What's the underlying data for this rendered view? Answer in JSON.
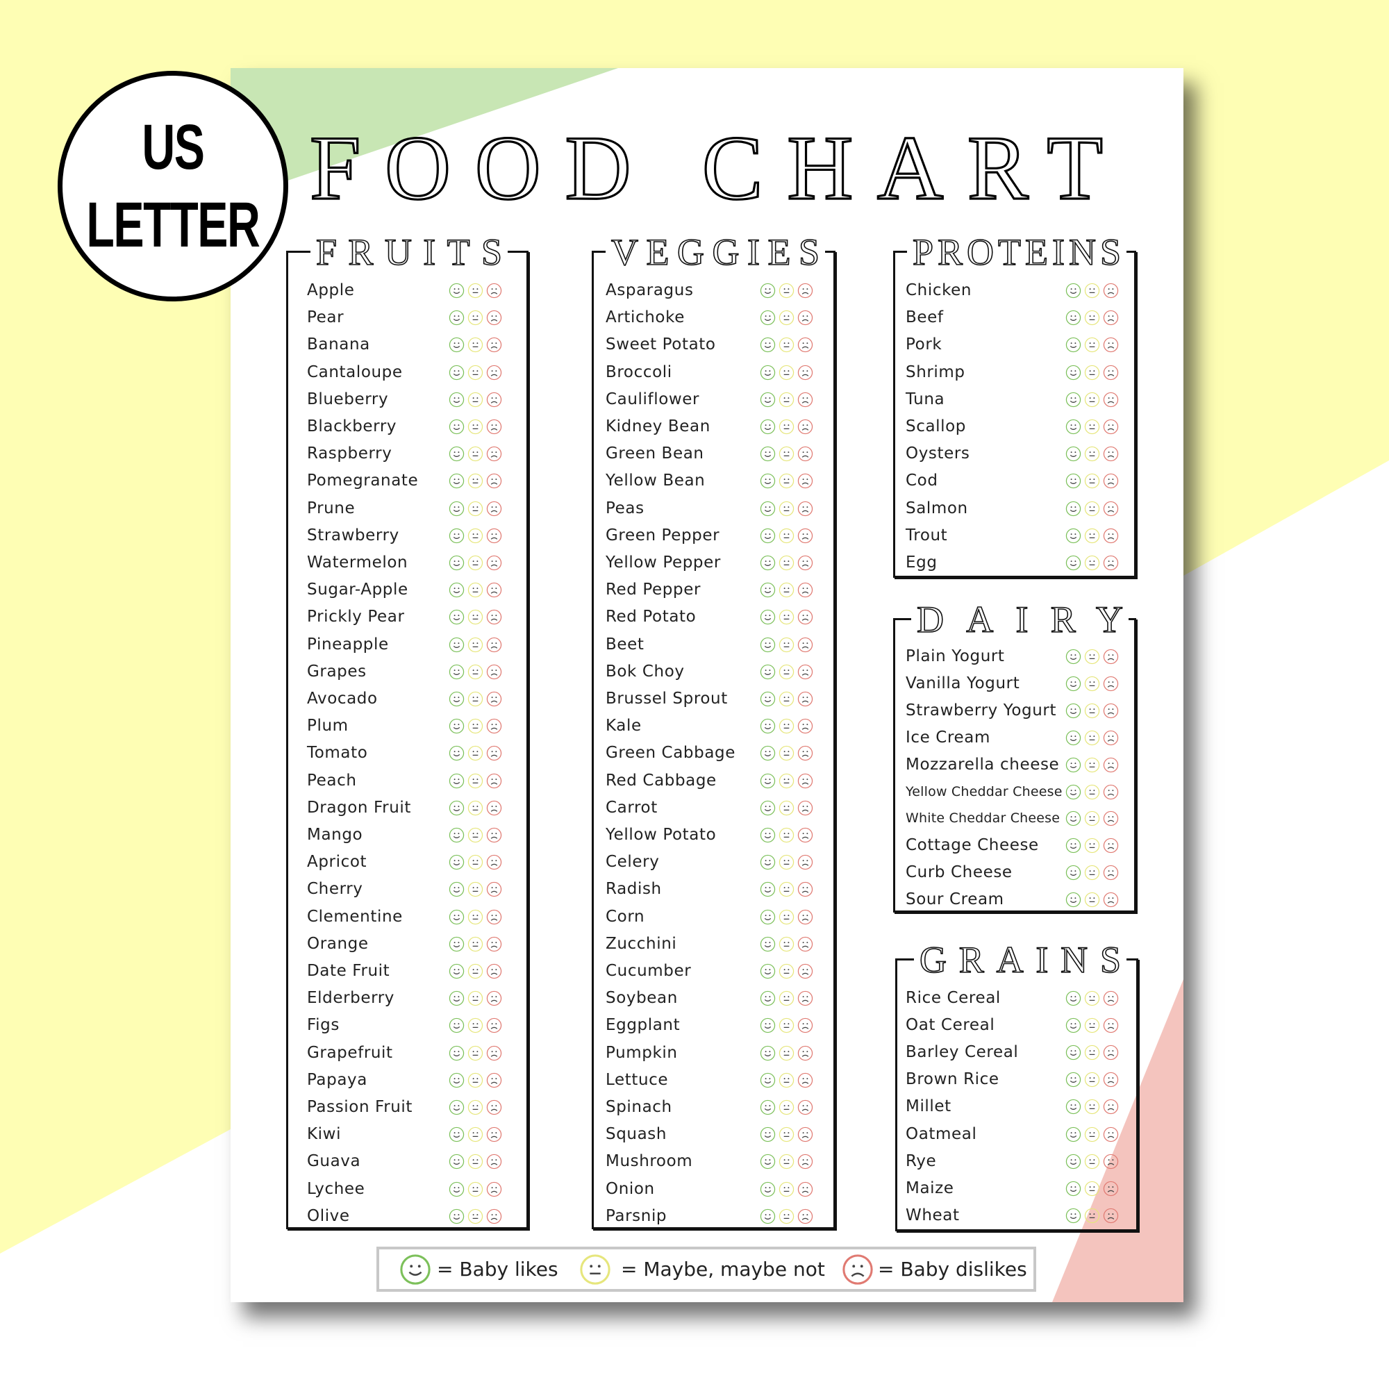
{
  "badge": {
    "line1": "US",
    "line2": "LETTER"
  },
  "title": "FOOD CHART",
  "colors": {
    "background_yellow": "#fefeb4",
    "green_accent": "#c8e6b4",
    "pink_accent": "#f4c4be",
    "likes": "#7cc05a",
    "maybe": "#e6e67c",
    "dislikes": "#e07a72",
    "legend_border": "#c8c8c8"
  },
  "face_icons": [
    "smiley-happy-icon",
    "smiley-neutral-icon",
    "smiley-sad-icon"
  ],
  "sections": {
    "fruits": {
      "title": "FRUITS",
      "items": [
        "Apple",
        "Pear",
        "Banana",
        "Cantaloupe",
        "Blueberry",
        "Blackberry",
        "Raspberry",
        "Pomegranate",
        "Prune",
        "Strawberry",
        "Watermelon",
        "Sugar-Apple",
        "Prickly Pear",
        "Pineapple",
        "Grapes",
        "Avocado",
        "Plum",
        "Tomato",
        "Peach",
        "Dragon Fruit",
        "Mango",
        "Apricot",
        "Cherry",
        "Clementine",
        "Orange",
        "Date Fruit",
        "Elderberry",
        "Figs",
        "Grapefruit",
        "Papaya",
        "Passion Fruit",
        "Kiwi",
        "Guava",
        "Lychee",
        "Olive"
      ]
    },
    "veggies": {
      "title": "VEGGIES",
      "items": [
        "Asparagus",
        "Artichoke",
        "Sweet Potato",
        "Broccoli",
        "Cauliflower",
        "Kidney Bean",
        "Green Bean",
        "Yellow Bean",
        "Peas",
        "Green Pepper",
        "Yellow Pepper",
        "Red Pepper",
        "Red Potato",
        "Beet",
        "Bok Choy",
        "Brussel Sprout",
        "Kale",
        "Green Cabbage",
        "Red Cabbage",
        "Carrot",
        "Yellow Potato",
        "Celery",
        "Radish",
        "Corn",
        "Zucchini",
        "Cucumber",
        "Soybean",
        "Eggplant",
        "Pumpkin",
        "Lettuce",
        "Spinach",
        "Squash",
        "Mushroom",
        "Onion",
        "Parsnip"
      ]
    },
    "proteins": {
      "title": "PROTEINS",
      "items": [
        "Chicken",
        "Beef",
        "Pork",
        "Shrimp",
        "Tuna",
        "Scallop",
        "Oysters",
        "Cod",
        "Salmon",
        "Trout",
        "Egg"
      ]
    },
    "dairy": {
      "title": "DAIRY",
      "items": [
        "Plain Yogurt",
        "Vanilla Yogurt",
        "Strawberry Yogurt",
        "Ice Cream",
        "Mozzarella cheese",
        "Yellow Cheddar Cheese",
        "White Cheddar Cheese",
        "Cottage Cheese",
        "Curb Cheese",
        "Sour Cream"
      ]
    },
    "grains": {
      "title": "GRAINS",
      "items": [
        "Rice Cereal",
        "Oat Cereal",
        "Barley Cereal",
        "Brown Rice",
        "Millet",
        "Oatmeal",
        "Rye",
        "Maize",
        "Wheat"
      ]
    }
  },
  "legend": {
    "likes": "= Baby likes",
    "maybe": "= Maybe, maybe not",
    "dislikes": "= Baby dislikes"
  }
}
